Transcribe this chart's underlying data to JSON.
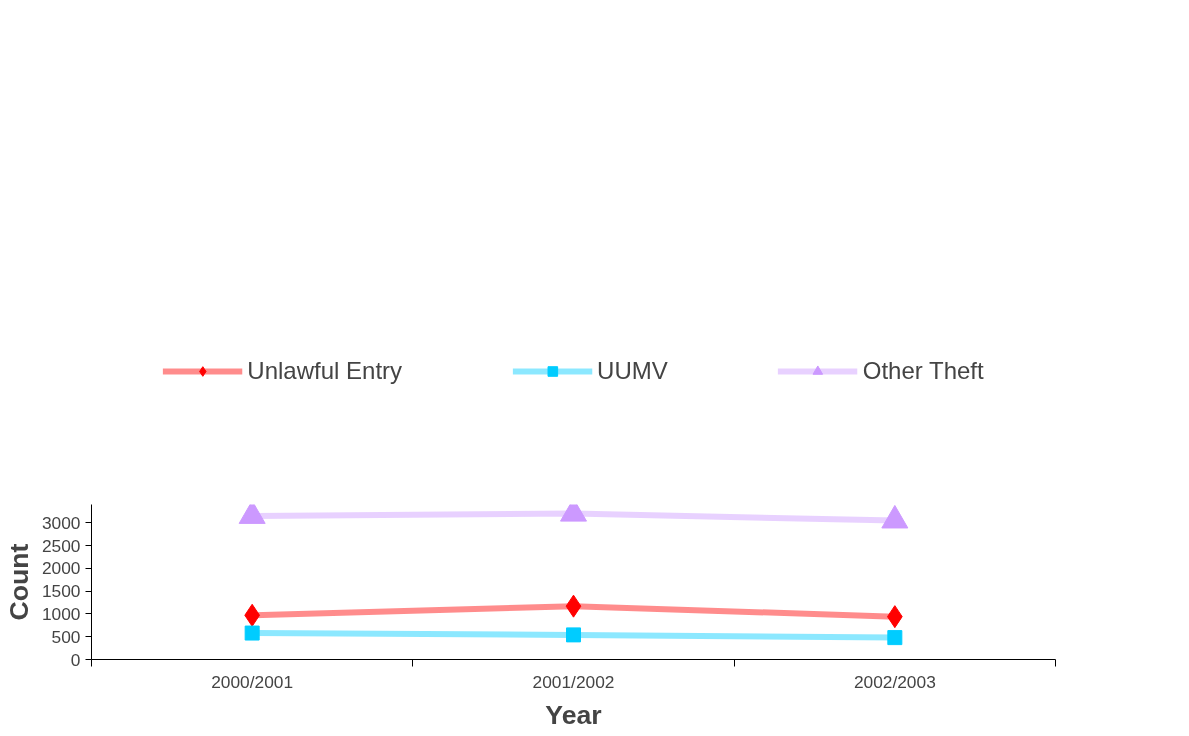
{
  "chart_data": {
    "type": "line",
    "xlabel": "Year",
    "ylabel": "Count",
    "categories": [
      "2000/2001",
      "2001/2002",
      "2002/2003"
    ],
    "series": [
      {
        "name": "Unlawful Entry",
        "color": "#ff0000",
        "marker": "diamond",
        "values": [
          970,
          1170,
          940
        ]
      },
      {
        "name": "UUMV",
        "color": "#00ccff",
        "marker": "square",
        "values": [
          580,
          540,
          480
        ]
      },
      {
        "name": "Other Theft",
        "color": "#cc99ff",
        "marker": "triangle",
        "values": [
          3150,
          3200,
          3050
        ]
      }
    ],
    "ylim": [
      0,
      3400
    ],
    "yticks": [
      0,
      500,
      1000,
      1500,
      2000,
      2500,
      3000
    ],
    "grid": false,
    "legend": "top",
    "line_style": "solid"
  }
}
